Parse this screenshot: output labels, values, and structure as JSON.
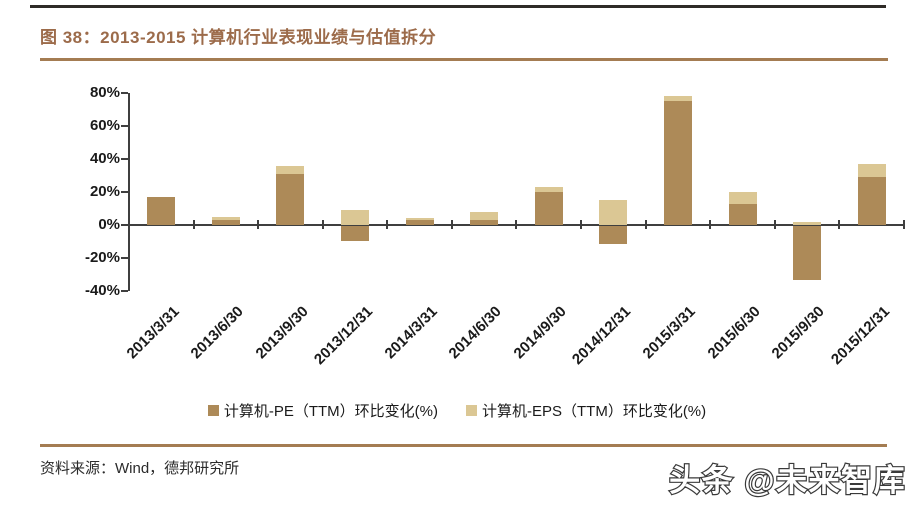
{
  "page": {
    "title": "图 38：2013-2015 计算机行业表现业绩与估值拆分",
    "source_text": "资料来源：Wind，德邦研究所",
    "watermark": "头条 @未来智库"
  },
  "colors": {
    "title_brown": "#9c6b4a",
    "rule_brown": "#a47c52",
    "pe_bar_dark": "#ad8a58",
    "eps_bar_light": "#dbc794",
    "axis_gray": "#3f3f3f"
  },
  "chart_data": {
    "type": "bar",
    "stacked": true,
    "grid": false,
    "legend_position": "bottom",
    "title": "2013-2015 计算机行业表现业绩与估值拆分",
    "xlabel": "",
    "ylabel": "",
    "ylim": [
      -40,
      80
    ],
    "ytick_labels": [
      "80%",
      "60%",
      "40%",
      "20%",
      "0%",
      "-20%",
      "-40%"
    ],
    "categories": [
      "2013/3/31",
      "2013/6/30",
      "2013/9/30",
      "2013/12/31",
      "2014/3/31",
      "2014/6/30",
      "2014/9/30",
      "2014/12/31",
      "2015/3/31",
      "2015/6/30",
      "2015/9/30",
      "2015/12/31"
    ],
    "series": [
      {
        "key": "pe",
        "name": "计算机-PE（TTM）环比变化(%)",
        "color": "#ad8a58",
        "values": [
          17,
          3,
          31,
          -9,
          3,
          3,
          20,
          -11,
          75,
          13,
          -33,
          29
        ]
      },
      {
        "key": "eps",
        "name": "计算机-EPS（TTM）环比变化(%)",
        "color": "#dbc794",
        "values": [
          0,
          2,
          5,
          9,
          1,
          5,
          3,
          15,
          3,
          7,
          2,
          8
        ]
      }
    ]
  }
}
